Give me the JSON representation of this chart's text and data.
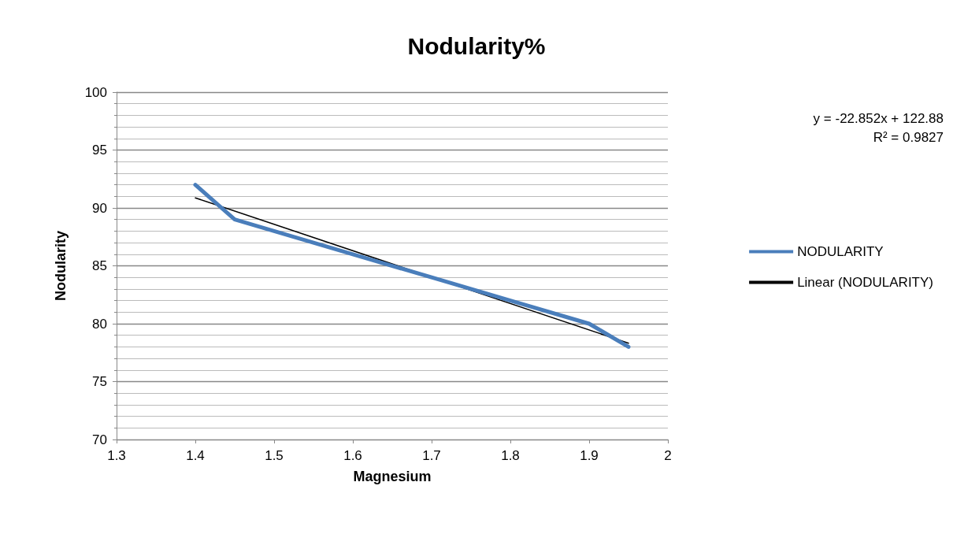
{
  "chart_data": {
    "type": "line",
    "title": "Nodularity%",
    "xlabel": "Magnesium",
    "ylabel": "Nodularity",
    "series": [
      {
        "name": "NODULARITY",
        "color": "#4a7ebb",
        "x": [
          1.4,
          1.45,
          1.5,
          1.6,
          1.7,
          1.8,
          1.9,
          1.95
        ],
        "values": [
          92,
          89,
          88,
          86,
          84,
          82,
          80,
          78
        ]
      },
      {
        "name": "Linear (NODULARITY)",
        "color": "#000000",
        "x": [
          1.4,
          1.95
        ],
        "values": [
          90.87,
          78.32
        ]
      }
    ],
    "xlim": [
      1.3,
      2
    ],
    "xticks": [
      1.3,
      1.4,
      1.5,
      1.6,
      1.7,
      1.8,
      1.9,
      2
    ],
    "ylim": [
      70,
      100
    ],
    "yticks": [
      70,
      75,
      80,
      85,
      90,
      95,
      100
    ],
    "grid": "y",
    "legend": "right",
    "marker": "none",
    "line_style": "solid",
    "annotations": [
      "y = -22.852x + 122.88",
      "R² = 0.9827"
    ]
  }
}
